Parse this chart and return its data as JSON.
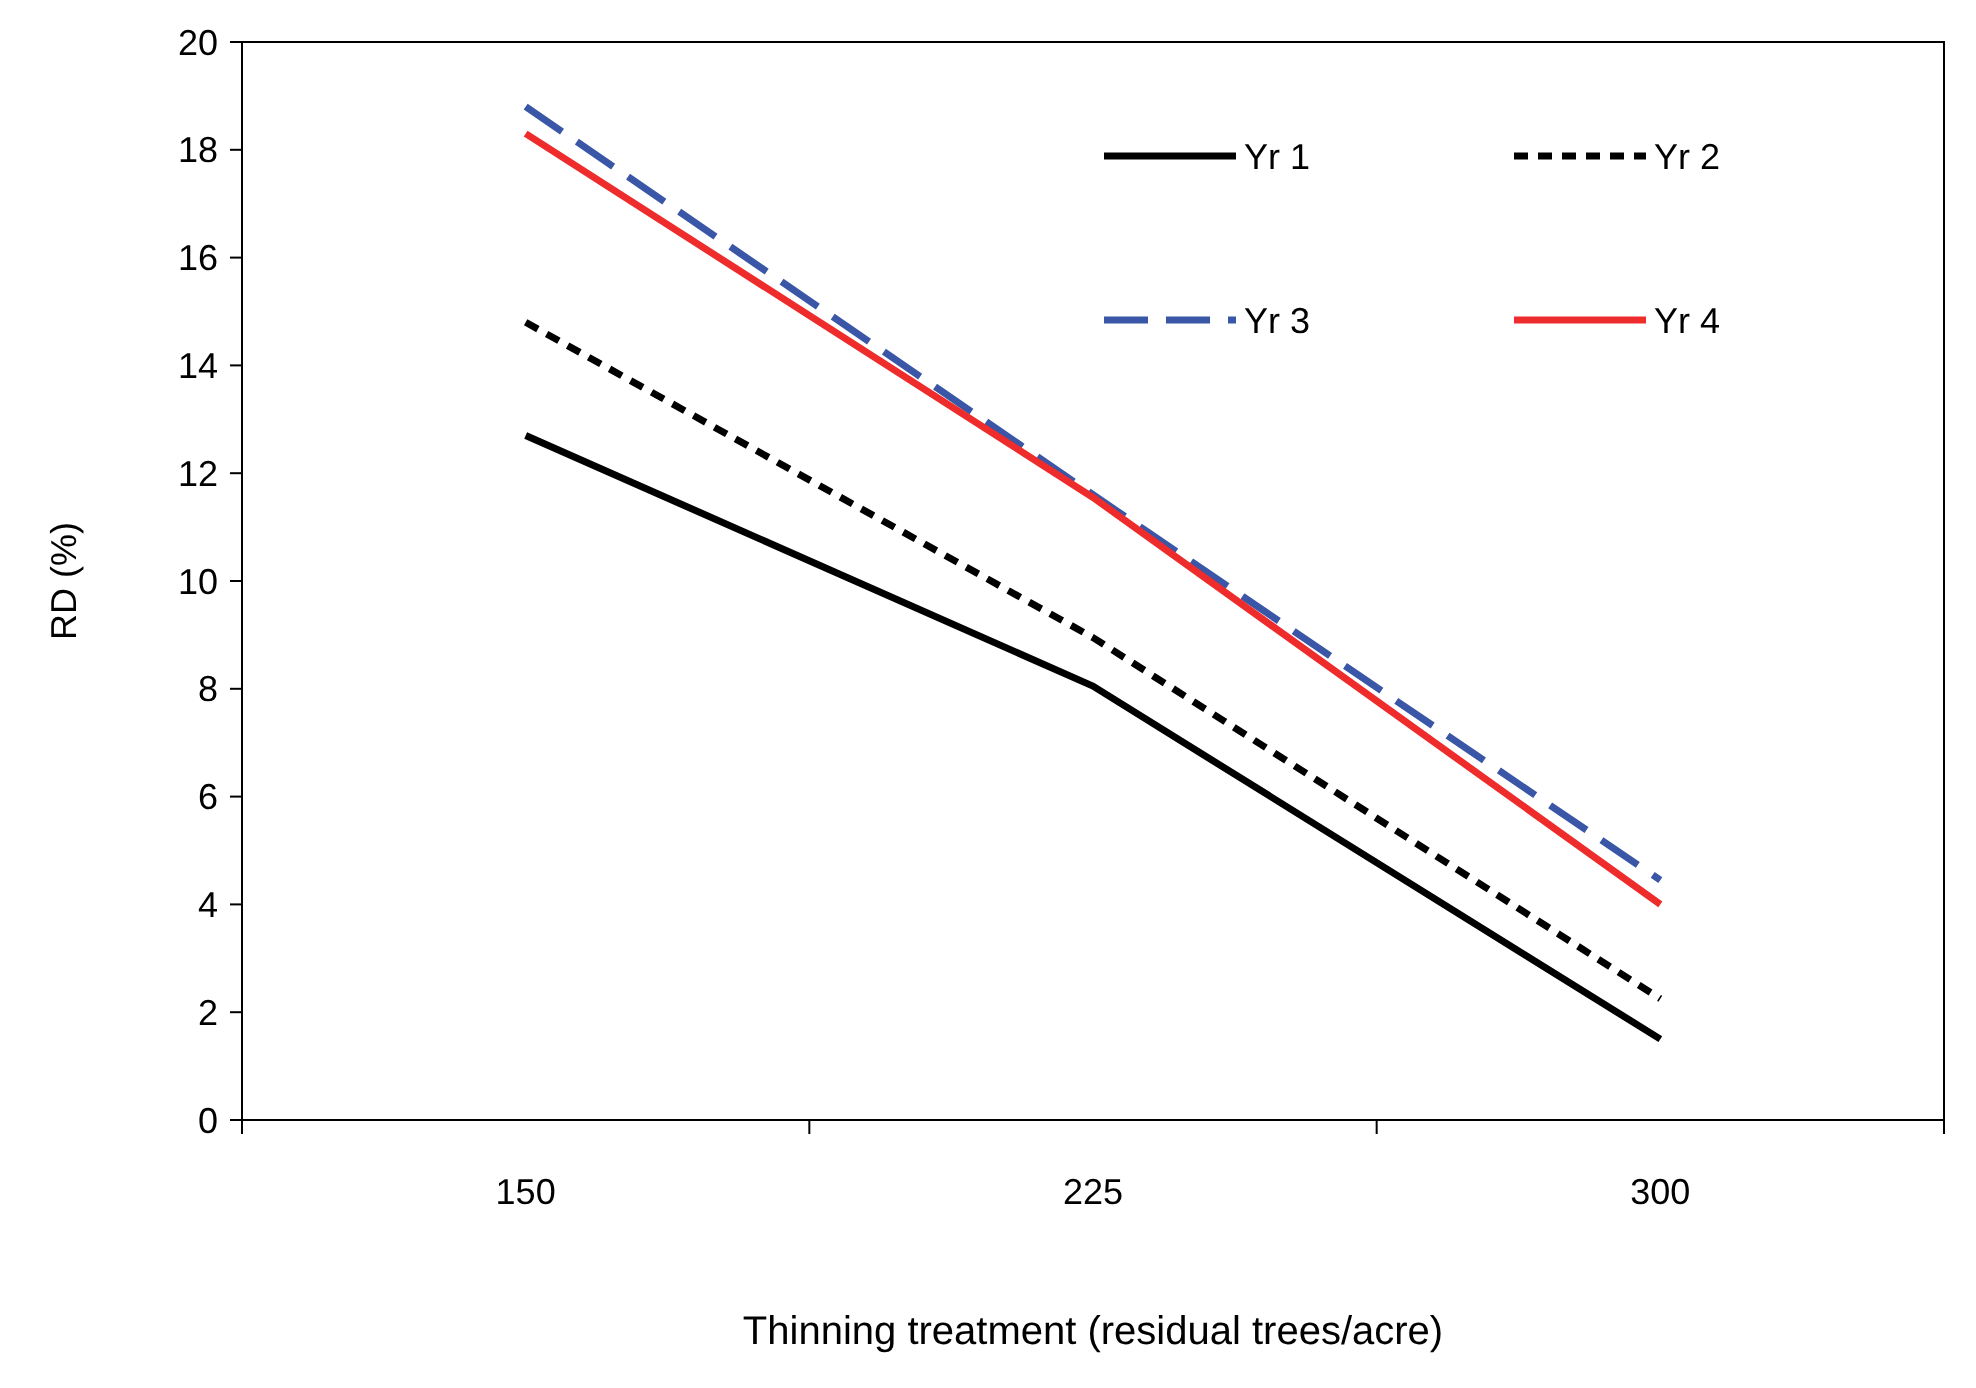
{
  "chart_data": {
    "type": "line",
    "xlabel": "Thinning treatment (residual trees/acre)",
    "ylabel": "RD (%)",
    "categories": [
      "150",
      "225",
      "300"
    ],
    "series": [
      {
        "name": "Yr 1",
        "color": "#000000",
        "line_style": "solid",
        "values": [
          12.7,
          8.05,
          1.5
        ]
      },
      {
        "name": "Yr 2",
        "color": "#000000",
        "line_style": "dotted",
        "values": [
          14.8,
          8.95,
          2.25
        ]
      },
      {
        "name": "Yr 3",
        "color": "#3a56a6",
        "line_style": "dashed",
        "values": [
          18.8,
          11.6,
          4.45
        ]
      },
      {
        "name": "Yr 4",
        "color": "#ee2c2c",
        "line_style": "solid",
        "values": [
          18.3,
          11.55,
          4.0
        ]
      }
    ],
    "ylim": [
      0,
      20
    ],
    "yticks": [
      0,
      2,
      4,
      6,
      8,
      10,
      12,
      14,
      16,
      18,
      20
    ],
    "grid": false,
    "legend": "top right",
    "marker": "none"
  }
}
